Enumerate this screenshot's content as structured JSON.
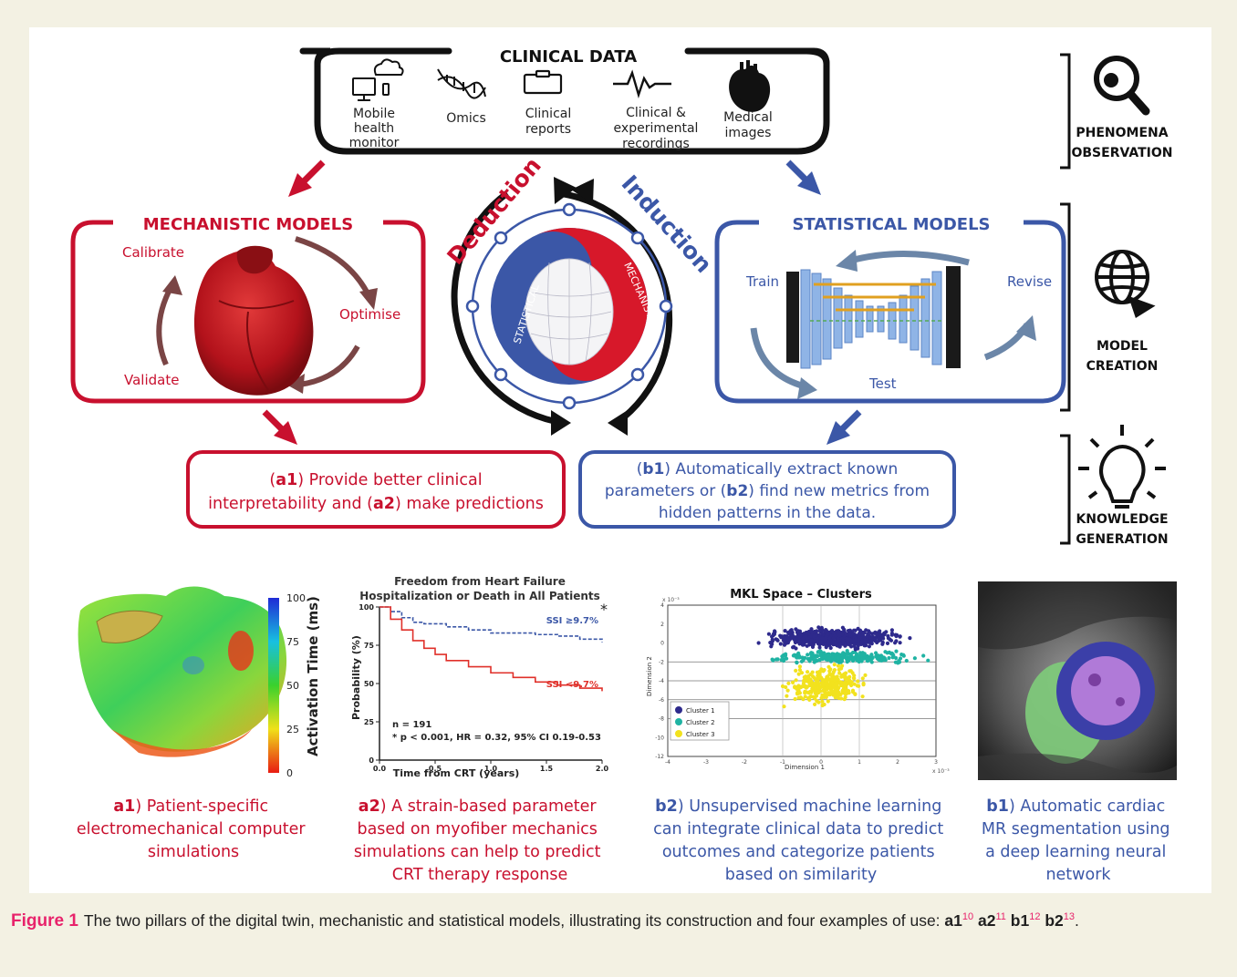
{
  "clinical": {
    "title": "CLINICAL DATA",
    "items": [
      {
        "lines": [
          "Mobile",
          "health",
          "monitor"
        ],
        "icon": "mobile-health-icon"
      },
      {
        "lines": [
          "Omics"
        ],
        "icon": "dna-icon"
      },
      {
        "lines": [
          "Clinical",
          "reports"
        ],
        "icon": "clipboard-icon"
      },
      {
        "lines": [
          "Clinical &",
          "experimental",
          "recordings"
        ],
        "icon": "waveform-icon"
      },
      {
        "lines": [
          "Medical",
          "images"
        ],
        "icon": "heart-icon"
      }
    ]
  },
  "mechanistic": {
    "title": "MECHANISTIC MODELS",
    "calibrate": "Calibrate",
    "optimise": "Optimise",
    "validate": "Validate",
    "color": "#c8102e"
  },
  "statistical": {
    "title": "STATISTICAL MODELS",
    "train": "Train",
    "revise": "Revise",
    "test": "Test",
    "color": "#3b57a7"
  },
  "cycle": {
    "deduction": "Deduction",
    "induction": "Induction",
    "left_label": "STATISTICAL",
    "right_label": "MECHANISTIC"
  },
  "outcomes": {
    "a": {
      "l1_pre": "(",
      "l1_bold": "a1",
      "l1_post": ") Provide better clinical",
      "l2_pre": "interpretability and (",
      "l2_bold": "a2",
      "l2_post": ") make predictions"
    },
    "b": {
      "l1_pre": "(",
      "l1_bold": "b1",
      "l1_post": ") Automatically extract known",
      "l2_pre": "parameters or (",
      "l2_bold": "b2",
      "l2_post": ") find new metrics from",
      "l3": "hidden patterns in the data."
    }
  },
  "sidebar": {
    "observation": [
      "PHENOMENA",
      "OBSERVATION"
    ],
    "creation": [
      "MODEL",
      "CREATION"
    ],
    "knowledge": [
      "KNOWLEDGE",
      "GENERATION"
    ],
    "icons": [
      "magnifier-icon",
      "globe-icon",
      "lightbulb-icon"
    ]
  },
  "a1_panel": {
    "colorbar_label": "Activation Time (ms)",
    "ticks": [
      "100",
      "75",
      "50",
      "25",
      "0"
    ],
    "caption_bold": "a1",
    "caption": [
      ") Patient-specific",
      "electromechanical computer",
      "simulations"
    ]
  },
  "a2_panel": {
    "title": [
      "Freedom from Heart Failure",
      "Hospitalization or Death in All Patients"
    ],
    "ylabel": "Probability (%)",
    "xlabel": "Time from CRT (years)",
    "yticks": [
      "100",
      "75",
      "50",
      "25",
      "0"
    ],
    "xticks": [
      "0.0",
      "0.5",
      "1.0",
      "1.5",
      "2.0"
    ],
    "series_high": "SSI ≥9.7%",
    "series_low": "SSI <9.7%",
    "star": "*",
    "n": "n = 191",
    "stats": "* p < 0.001, HR = 0.32, 95% CI 0.19-0.53",
    "caption_bold": "a2",
    "caption": [
      ") A strain-based parameter",
      "based on myofiber mechanics",
      "simulations can help to predict",
      "CRT therapy response"
    ]
  },
  "b2_panel": {
    "title": "MKL Space – Clusters",
    "xlabel": "Dimension 1",
    "ylabel": "Dimension 2",
    "legend": [
      "Cluster 1",
      "Cluster 2",
      "Cluster 3"
    ],
    "cluster_colors": [
      "#2e2a8c",
      "#1fb3a3",
      "#f2e21e"
    ],
    "yticks": [
      "4",
      "2",
      "0",
      "-2",
      "-4",
      "-6",
      "-8",
      "-10",
      "-12"
    ],
    "xticks": [
      "-4",
      "-3",
      "-2",
      "-1",
      "0",
      "1",
      "2",
      "3"
    ],
    "exp": "x 10⁻³",
    "caption_bold": "b2",
    "caption": [
      ") Unsupervised machine learning",
      "can integrate clinical data to predict",
      "outcomes and categorize patients",
      "based on similarity"
    ]
  },
  "b1_panel": {
    "caption_bold": "b1",
    "caption": [
      ") Automatic cardiac",
      "MR segmentation using",
      "a deep learning neural",
      "network"
    ]
  },
  "caption": {
    "label": "Figure 1",
    "text": "The two pillars of the digital twin, mechanistic and statistical models, illustrating its construction and four examples of use:",
    "refs": [
      {
        "key": "a1",
        "ref": "10",
        "sep": " "
      },
      {
        "key": "a2",
        "ref": "11",
        "sep": " "
      },
      {
        "key": "b1",
        "ref": "12",
        "sep": " "
      },
      {
        "key": "b2",
        "ref": "13",
        "sep": "."
      }
    ]
  },
  "chart_data": [
    {
      "type": "line",
      "title": "Freedom from Heart Failure Hospitalization or Death in All Patients",
      "xlabel": "Time from CRT (years)",
      "ylabel": "Probability (%)",
      "xlim": [
        0,
        2
      ],
      "ylim": [
        0,
        100
      ],
      "series": [
        {
          "name": "SSI ≥9.7%",
          "x": [
            0,
            0.1,
            0.2,
            0.3,
            0.4,
            0.6,
            0.8,
            1.0,
            1.2,
            1.4,
            1.6,
            1.8,
            2.0
          ],
          "values": [
            100,
            97,
            93,
            90,
            89,
            87,
            85,
            83,
            83,
            82,
            81,
            79,
            77
          ]
        },
        {
          "name": "SSI <9.7%",
          "x": [
            0,
            0.1,
            0.2,
            0.3,
            0.4,
            0.5,
            0.6,
            0.8,
            1.0,
            1.2,
            1.4,
            1.6,
            1.8,
            2.0
          ],
          "values": [
            100,
            92,
            85,
            78,
            73,
            69,
            65,
            61,
            57,
            54,
            51,
            49,
            47,
            45
          ]
        }
      ]
    },
    {
      "type": "scatter",
      "title": "MKL Space – Clusters",
      "xlabel": "Dimension 1",
      "ylabel": "Dimension 2",
      "xlim": [
        -4,
        3
      ],
      "ylim": [
        -12,
        4
      ],
      "series": [
        {
          "name": "Cluster 1",
          "center": [
            0.3,
            0.5
          ],
          "spread": [
            1.4,
            0.8
          ]
        },
        {
          "name": "Cluster 2",
          "center": [
            0.6,
            -1.5
          ],
          "spread": [
            1.5,
            0.5
          ]
        },
        {
          "name": "Cluster 3",
          "center": [
            0.1,
            -4.5
          ],
          "spread": [
            0.8,
            1.6
          ]
        }
      ]
    }
  ]
}
